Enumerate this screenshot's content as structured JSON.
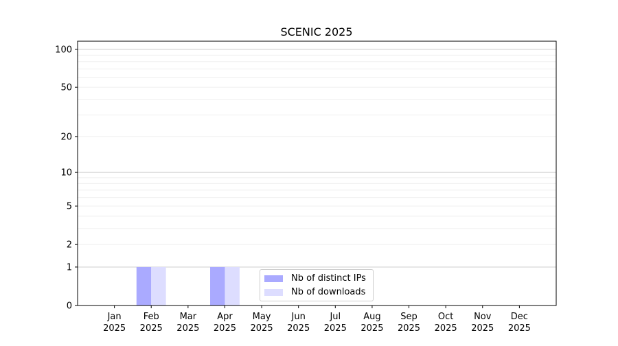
{
  "chart_data": {
    "type": "bar",
    "title": "SCENIC 2025",
    "xlabel": "",
    "ylabel": "",
    "y_scale": "symlog (log10(1+y))",
    "ylim": [
      0,
      116
    ],
    "y_ticks": [
      0,
      1,
      2,
      5,
      10,
      20,
      50,
      100
    ],
    "y_tick_labels": [
      "0",
      "1",
      "2",
      "5",
      "10",
      "20",
      "50",
      "100"
    ],
    "grid": true,
    "legend_position": "lower-center",
    "categories": [
      [
        "Jan",
        "2025"
      ],
      [
        "Feb",
        "2025"
      ],
      [
        "Mar",
        "2025"
      ],
      [
        "Apr",
        "2025"
      ],
      [
        "May",
        "2025"
      ],
      [
        "Jun",
        "2025"
      ],
      [
        "Jul",
        "2025"
      ],
      [
        "Aug",
        "2025"
      ],
      [
        "Sep",
        "2025"
      ],
      [
        "Oct",
        "2025"
      ],
      [
        "Nov",
        "2025"
      ],
      [
        "Dec",
        "2025"
      ]
    ],
    "series": [
      {
        "name": "Nb of distinct IPs",
        "color": "#aaaaff",
        "values": [
          0,
          1,
          0,
          1,
          0,
          0,
          0,
          0,
          0,
          0,
          0,
          0
        ]
      },
      {
        "name": "Nb of downloads",
        "color": "#ddddff",
        "values": [
          0,
          1,
          0,
          1,
          0,
          0,
          0,
          0,
          0,
          0,
          0,
          0
        ]
      }
    ]
  }
}
